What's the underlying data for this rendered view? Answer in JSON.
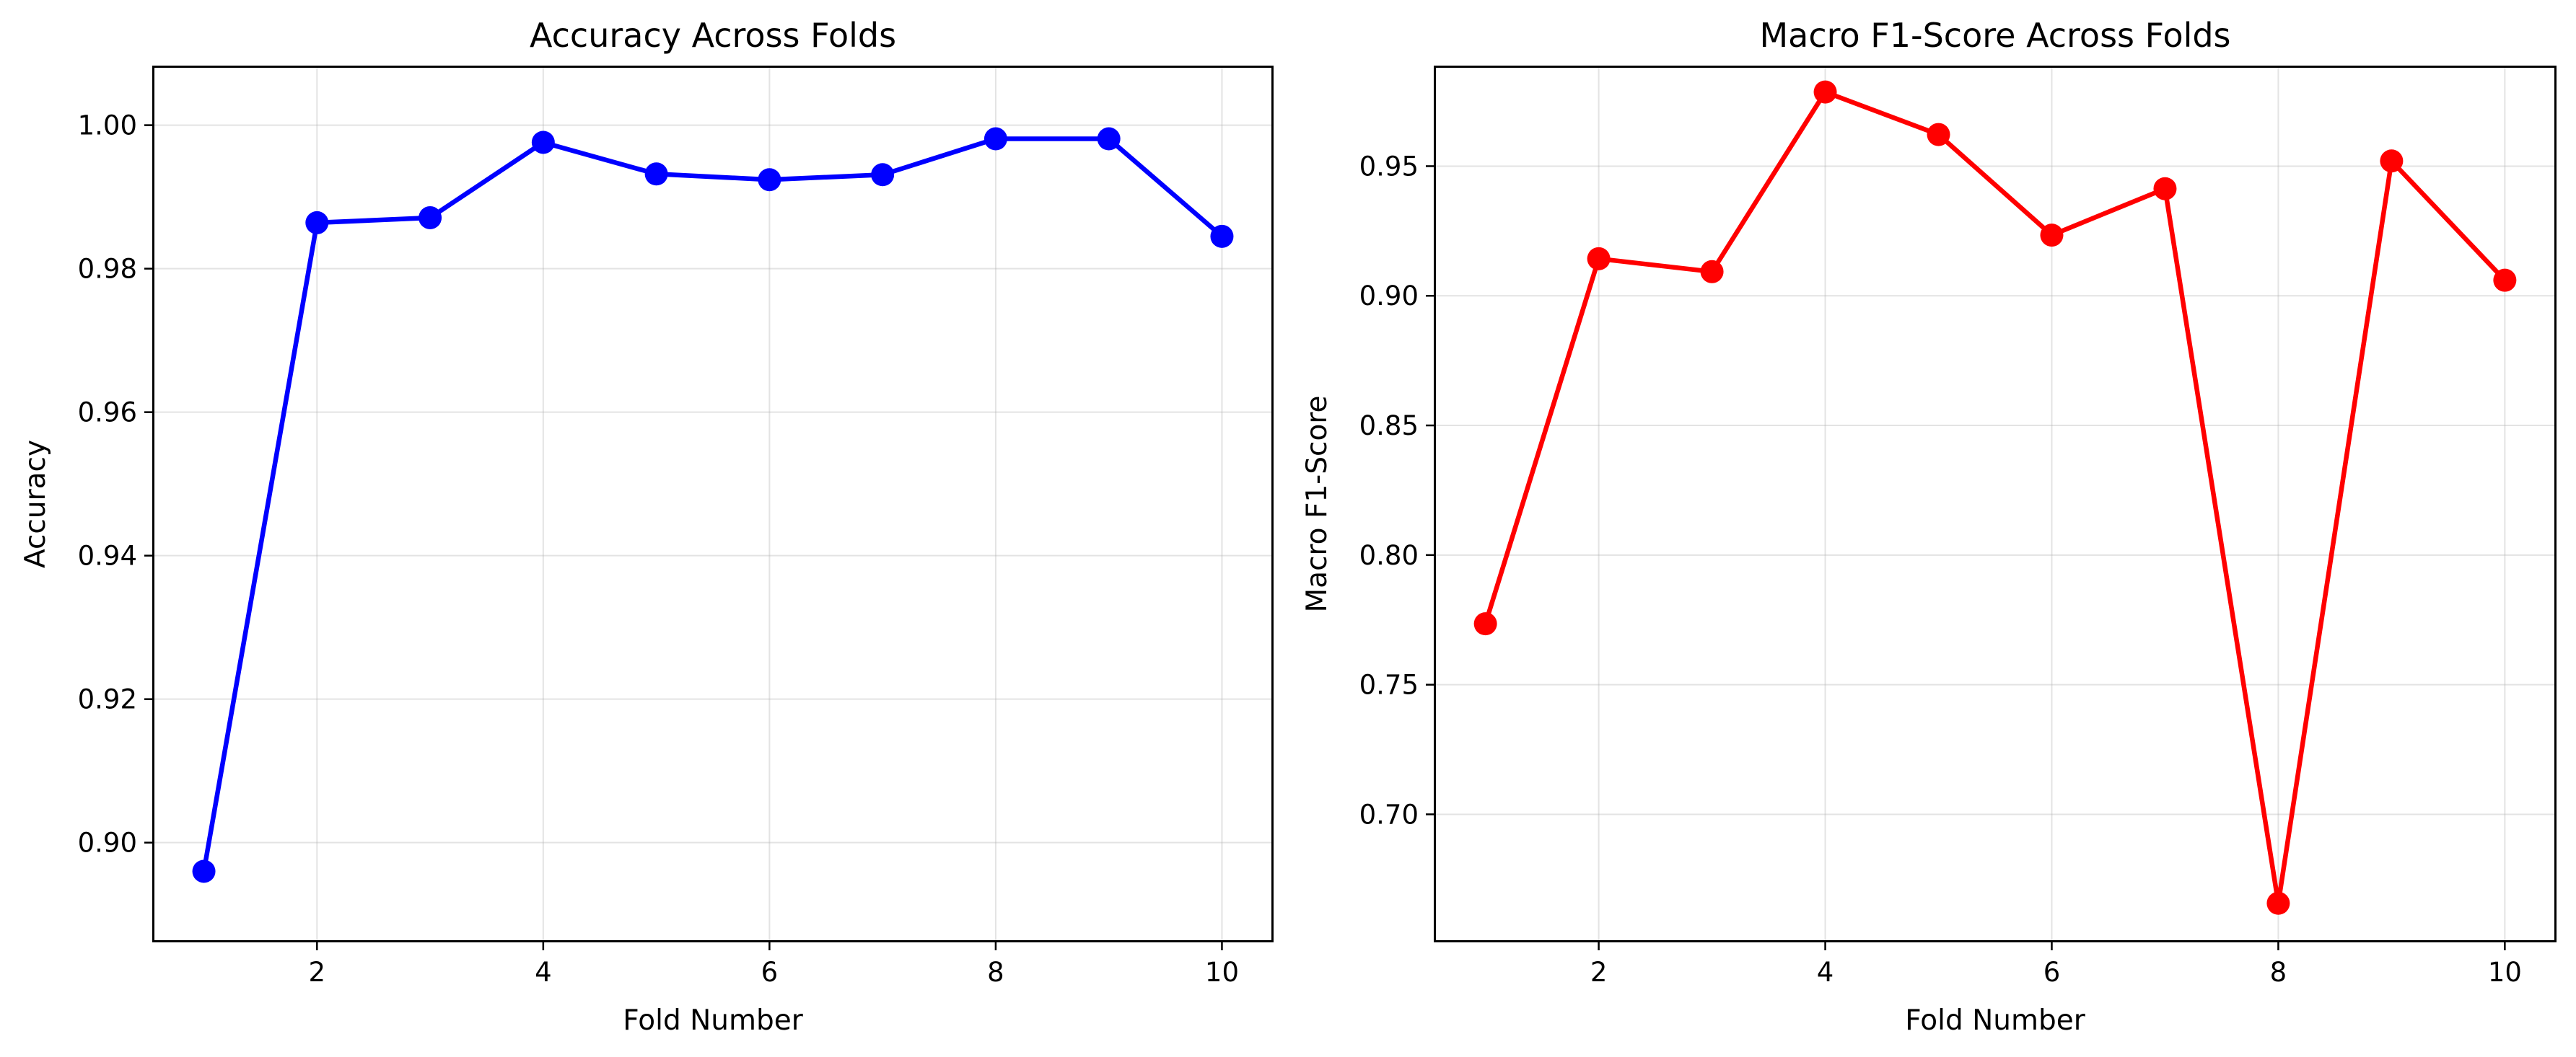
{
  "figure": {
    "background": "#ffffff"
  },
  "chart_data": [
    {
      "type": "line",
      "title": "Accuracy Across Folds",
      "xlabel": "Fold Number",
      "ylabel": "Accuracy",
      "x": [
        1,
        2,
        3,
        4,
        5,
        6,
        7,
        8,
        9,
        10
      ],
      "xticks": [
        2,
        4,
        6,
        8,
        10
      ],
      "xlim": [
        0.55,
        10.45
      ],
      "ylim": [
        0.8862,
        1.0082
      ],
      "yticks": [
        0.9,
        0.92,
        0.94,
        0.96,
        0.98,
        1.0
      ],
      "ytick_labels": [
        "0.90",
        "0.92",
        "0.94",
        "0.96",
        "0.98",
        "1.00"
      ],
      "grid": true,
      "series": [
        {
          "color": "#0000ff",
          "marker": "circle",
          "values": [
            0.896,
            0.9864,
            0.9871,
            0.9976,
            0.9932,
            0.9924,
            0.9931,
            0.9981,
            0.9981,
            0.9845
          ]
        }
      ]
    },
    {
      "type": "line",
      "title": "Macro F1-Score Across Folds",
      "xlabel": "Fold Number",
      "ylabel": "Macro F1-Score",
      "x": [
        1,
        2,
        3,
        4,
        5,
        6,
        7,
        8,
        9,
        10
      ],
      "xticks": [
        2,
        4,
        6,
        8,
        10
      ],
      "xlim": [
        0.55,
        10.45
      ],
      "ylim": [
        0.6509,
        0.9885
      ],
      "yticks": [
        0.7,
        0.75,
        0.8,
        0.85,
        0.9,
        0.95
      ],
      "ytick_labels": [
        "0.70",
        "0.75",
        "0.80",
        "0.85",
        "0.90",
        "0.95"
      ],
      "grid": true,
      "series": [
        {
          "color": "#ff0000",
          "marker": "circle",
          "values": [
            0.7735,
            0.9143,
            0.9093,
            0.9786,
            0.9622,
            0.9234,
            0.9413,
            0.6657,
            0.952,
            0.906
          ]
        }
      ]
    }
  ]
}
